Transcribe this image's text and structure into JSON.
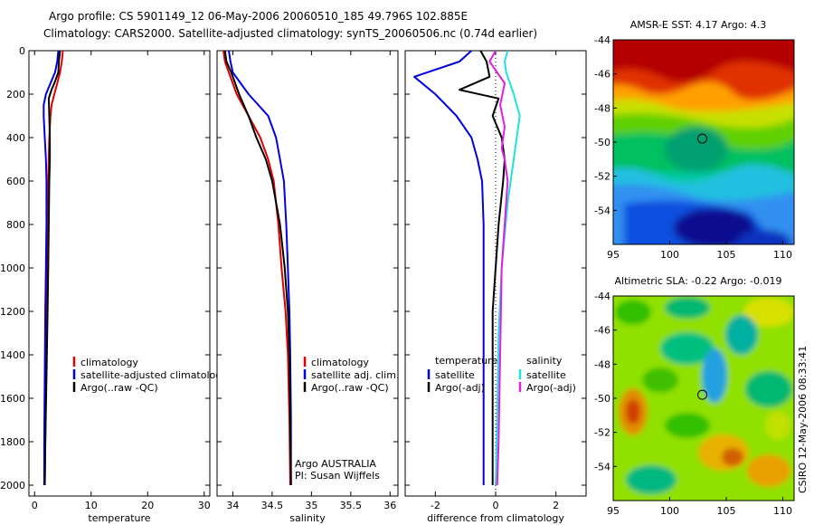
{
  "header": {
    "line1": "Argo profile: CS 5901149_12 06-May-2006 20060510_185 49.796S 102.885E",
    "line2": "Climatology: CARS2000. Satellite-adjusted climatology: synTS_20060506.nc (0.74d earlier)"
  },
  "side_label": "CSIRO 12-May-2006 08:33:41",
  "colors": {
    "red": "#e00000",
    "blue": "#0000e0",
    "black": "#000000",
    "cyan": "#20e0e0",
    "magenta": "#e020e0"
  },
  "chart_data": [
    {
      "type": "line",
      "id": "temperature",
      "xlabel": "temperature",
      "xlim": [
        -1,
        31
      ],
      "xticks": [
        0,
        10,
        20,
        30
      ],
      "ylim": [
        2050,
        0
      ],
      "yticks": [
        0,
        200,
        400,
        600,
        800,
        1000,
        1200,
        1400,
        1600,
        1800,
        2000
      ],
      "legend": [
        "climatology",
        "satellite-adjusted climatology",
        "Argo(..raw -QC)"
      ],
      "series": [
        {
          "name": "climatology",
          "color": "red",
          "x": [
            5.0,
            4.8,
            4.5,
            4.0,
            3.5,
            3.0,
            2.8,
            2.6,
            2.5,
            2.4,
            2.3,
            2.2,
            2.1,
            2.0,
            1.9,
            1.8
          ],
          "y": [
            0,
            50,
            100,
            150,
            200,
            250,
            300,
            400,
            500,
            600,
            800,
            1000,
            1200,
            1500,
            1800,
            2000
          ]
        },
        {
          "name": "satellite-adjusted climatology",
          "color": "blue",
          "x": [
            4.2,
            4.0,
            3.6,
            2.8,
            2.0,
            1.6,
            1.6,
            1.8,
            2.0,
            2.1,
            2.1,
            2.0,
            1.9,
            1.8,
            1.7,
            1.7
          ],
          "y": [
            0,
            50,
            100,
            150,
            200,
            250,
            300,
            400,
            500,
            600,
            800,
            1000,
            1200,
            1500,
            1800,
            2000
          ]
        },
        {
          "name": "Argo(..raw -QC)",
          "color": "black",
          "x": [
            4.5,
            4.3,
            4.2,
            3.5,
            3.0,
            2.5,
            2.6,
            2.7,
            2.7,
            2.6,
            2.5,
            2.4,
            2.3,
            2.1,
            1.9,
            1.8
          ],
          "y": [
            0,
            50,
            100,
            150,
            180,
            220,
            300,
            400,
            500,
            600,
            800,
            1000,
            1200,
            1500,
            1800,
            2000
          ]
        }
      ]
    },
    {
      "type": "line",
      "id": "salinity",
      "xlabel": "salinity",
      "xlim": [
        33.8,
        36.1
      ],
      "xticks": [
        34,
        34.5,
        35,
        35.5,
        36
      ],
      "xticklabels": [
        "34",
        "34.5",
        "35",
        "35.5",
        "36"
      ],
      "ylim": [
        2050,
        0
      ],
      "legend": [
        "climatology",
        "satellite adj. clim.",
        "Argo(..raw -QC)"
      ],
      "annotation": [
        "Argo AUSTRALIA",
        "PI: Susan Wijffels"
      ],
      "series": [
        {
          "name": "climatology",
          "color": "red",
          "x": [
            33.88,
            33.9,
            33.95,
            34.05,
            34.2,
            34.35,
            34.45,
            34.52,
            34.58,
            34.62,
            34.67,
            34.7,
            34.72,
            34.73
          ],
          "y": [
            0,
            50,
            100,
            200,
            300,
            400,
            500,
            600,
            800,
            1000,
            1200,
            1400,
            1700,
            2000
          ]
        },
        {
          "name": "satellite adj. clim.",
          "color": "blue",
          "x": [
            33.95,
            33.97,
            34.0,
            34.2,
            34.45,
            34.55,
            34.6,
            34.65,
            34.68,
            34.7,
            34.72,
            34.73,
            34.74,
            34.74
          ],
          "y": [
            0,
            50,
            100,
            200,
            300,
            400,
            500,
            600,
            800,
            1000,
            1200,
            1400,
            1700,
            2000
          ]
        },
        {
          "name": "Argo(..raw -QC)",
          "color": "black",
          "x": [
            33.9,
            33.92,
            33.98,
            34.08,
            34.2,
            34.3,
            34.42,
            34.5,
            34.6,
            34.66,
            34.7,
            34.72,
            34.73,
            34.74
          ],
          "y": [
            0,
            50,
            100,
            200,
            300,
            400,
            500,
            600,
            800,
            1000,
            1200,
            1400,
            1700,
            2000
          ]
        }
      ]
    },
    {
      "type": "line",
      "id": "difference",
      "xlabel": "difference from climatology",
      "xlim": [
        -3,
        3
      ],
      "xticks": [
        -2,
        0,
        2
      ],
      "ylim": [
        2050,
        0
      ],
      "legend_left_title": "temperature",
      "legend_right_title": "salinity",
      "legend_left": [
        "satellite",
        "Argo(-adj)"
      ],
      "legend_right": [
        "satellite",
        "Argo(-adj)"
      ],
      "series": [
        {
          "name": "temperature satellite",
          "color": "blue",
          "x": [
            -0.8,
            -1.2,
            -2.7,
            -2.0,
            -1.3,
            -0.8,
            -0.6,
            -0.45,
            -0.4,
            -0.4,
            -0.4,
            -0.4,
            -0.4
          ],
          "y": [
            0,
            50,
            120,
            200,
            300,
            400,
            500,
            600,
            800,
            1000,
            1400,
            1800,
            2000
          ]
        },
        {
          "name": "temperature Argo(-adj)",
          "color": "black",
          "x": [
            -0.5,
            -0.3,
            -0.2,
            -1.2,
            0.1,
            -0.1,
            0.2,
            0.3,
            0.25,
            0.1,
            -0.1,
            -0.1,
            -0.1
          ],
          "y": [
            0,
            50,
            120,
            180,
            220,
            300,
            400,
            500,
            600,
            800,
            1200,
            1600,
            2000
          ]
        },
        {
          "name": "salinity satellite",
          "color": "cyan",
          "x": [
            0.4,
            0.3,
            0.35,
            0.6,
            0.8,
            0.7,
            0.6,
            0.4,
            0.2,
            0.1,
            0.05,
            0.0
          ],
          "y": [
            0,
            50,
            100,
            200,
            300,
            400,
            500,
            700,
            1000,
            1300,
            1700,
            2000
          ]
        },
        {
          "name": "salinity Argo(-adj)",
          "color": "magenta",
          "x": [
            0.0,
            -0.2,
            0.3,
            0.15,
            0.3,
            0.2,
            0.3,
            0.4,
            0.3,
            0.2,
            0.15,
            0.1,
            0.05
          ],
          "y": [
            0,
            50,
            150,
            250,
            350,
            450,
            500,
            600,
            800,
            1000,
            1400,
            1800,
            2000
          ]
        }
      ]
    },
    {
      "type": "heatmap",
      "id": "sst",
      "title": "AMSR-E SST: 4.17 Argo: 4.3",
      "xlim": [
        95,
        111
      ],
      "ylim": [
        -56,
        -44
      ],
      "xticks": [
        95,
        100,
        105,
        110
      ],
      "yticks": [
        -44,
        -46,
        -48,
        -50,
        -52,
        -54
      ],
      "marker": {
        "lon": 102.885,
        "lat": -49.796
      }
    },
    {
      "type": "heatmap",
      "id": "sla",
      "title": "Altimetric SLA: -0.22 Argo: -0.019",
      "xlim": [
        95,
        111
      ],
      "ylim": [
        -56,
        -44
      ],
      "xticks": [
        95,
        100,
        105,
        110
      ],
      "yticks": [
        -44,
        -46,
        -48,
        -50,
        -52,
        -54
      ],
      "marker": {
        "lon": 102.885,
        "lat": -49.796
      }
    }
  ]
}
